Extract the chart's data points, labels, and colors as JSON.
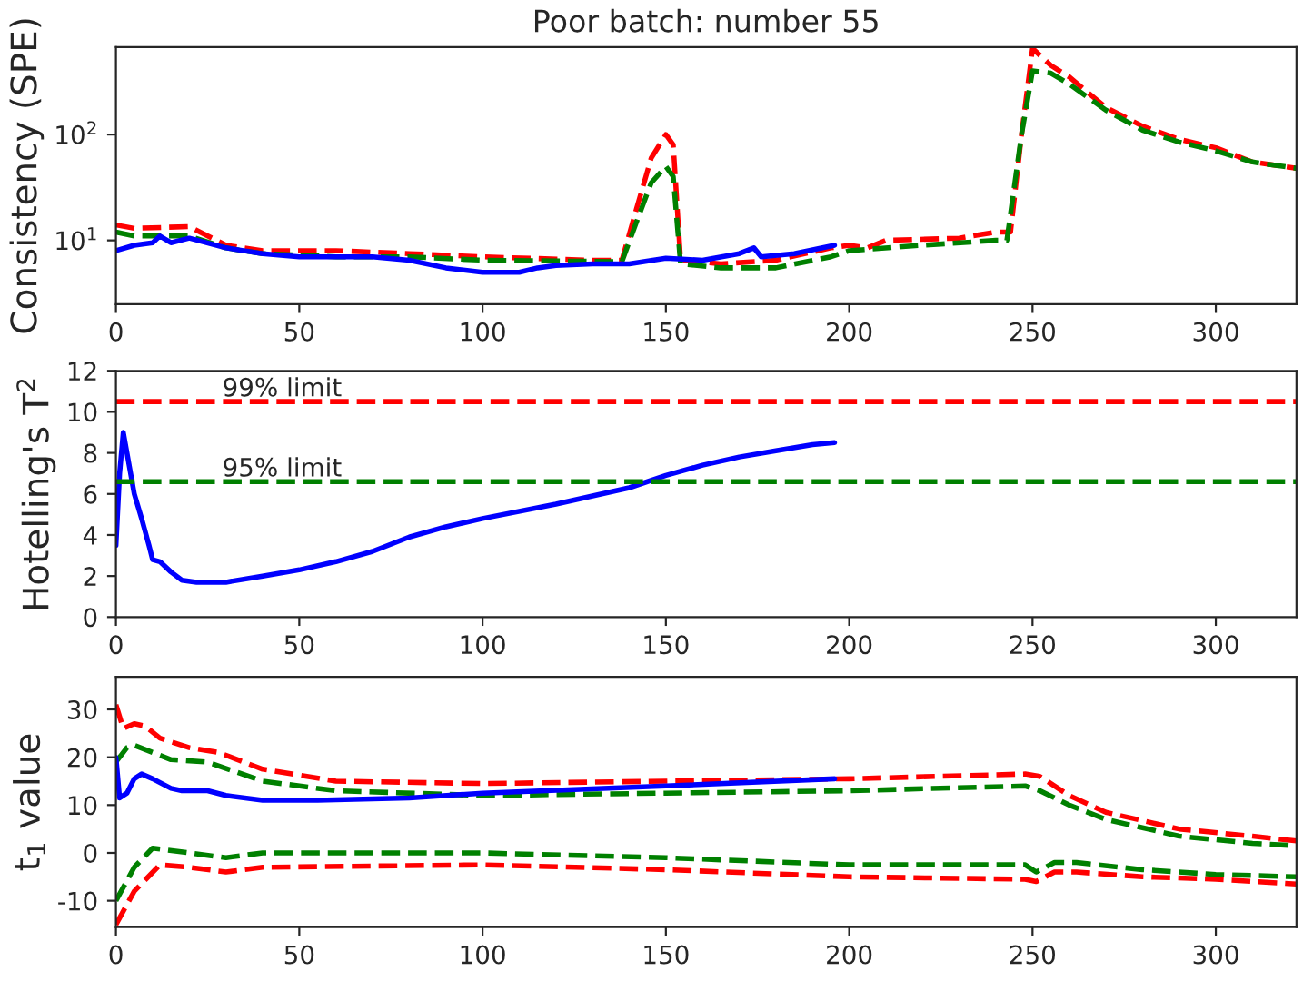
{
  "chart_data": [
    {
      "type": "line",
      "title": "Poor batch: number 55",
      "ylabel": "Consistency (SPE)",
      "log": "y",
      "xlim": [
        0,
        322
      ],
      "xticks": [
        0,
        50,
        100,
        150,
        200,
        250,
        300
      ],
      "ylim": [
        2.5,
        670
      ],
      "yticks": [
        {
          "value": 10,
          "label": "10$^{1}$"
        },
        {
          "value": 100,
          "label": "10$^{2}$"
        }
      ],
      "series": [
        {
          "color": "#ff0000",
          "line_style": "dashed",
          "x": [
            0,
            5,
            20,
            30,
            40,
            60,
            80,
            100,
            130,
            138,
            142,
            146,
            150,
            152,
            154,
            165,
            180,
            195,
            200,
            205,
            210,
            230,
            240,
            244,
            247,
            250,
            255,
            260,
            270,
            280,
            290,
            300,
            310,
            322
          ],
          "values": [
            14,
            13,
            13.5,
            9,
            8,
            8,
            7.5,
            7,
            6.5,
            6.5,
            20,
            60,
            100,
            80,
            6.5,
            6,
            6.5,
            8.5,
            9,
            8.5,
            10,
            10.5,
            12,
            12,
            100,
            650,
            450,
            350,
            180,
            120,
            90,
            75,
            55,
            48
          ]
        },
        {
          "color": "#008000",
          "line_style": "dashed",
          "x": [
            0,
            5,
            20,
            30,
            40,
            60,
            80,
            100,
            138,
            142,
            146,
            150,
            152,
            154,
            165,
            180,
            195,
            200,
            220,
            240,
            243,
            247,
            250,
            255,
            260,
            270,
            280,
            290,
            300,
            310,
            322
          ],
          "values": [
            12,
            11,
            11,
            8.5,
            7.5,
            7,
            7,
            6.5,
            6.3,
            15,
            35,
            50,
            40,
            6,
            5.5,
            5.5,
            7,
            8,
            9,
            10,
            10,
            100,
            400,
            380,
            300,
            170,
            110,
            85,
            70,
            55,
            48
          ]
        },
        {
          "color": "#0000ff",
          "line_style": "solid",
          "x": [
            0,
            5,
            10,
            12,
            15,
            20,
            30,
            40,
            50,
            70,
            80,
            90,
            100,
            110,
            115,
            120,
            130,
            140,
            150,
            160,
            170,
            174,
            176,
            185,
            196
          ],
          "values": [
            8,
            9,
            9.5,
            11,
            9.5,
            10.5,
            8.5,
            7.5,
            7,
            7,
            6.5,
            5.5,
            5,
            5,
            5.5,
            5.8,
            6,
            6,
            6.8,
            6.5,
            7.5,
            8.5,
            7,
            7.5,
            9
          ]
        }
      ]
    },
    {
      "type": "line",
      "ylabel": "Hotelling's T$^{2}$",
      "xlim": [
        0,
        322
      ],
      "xticks": [
        0,
        50,
        100,
        150,
        200,
        250,
        300
      ],
      "ylim": [
        0,
        12
      ],
      "yticks": [
        0,
        2,
        4,
        6,
        8,
        10,
        12
      ],
      "ref_lines": [
        {
          "axis": "y",
          "value": 10.5,
          "label": "99% limit",
          "color": "#ff0000",
          "line_style": "dashed"
        },
        {
          "axis": "y",
          "value": 6.6,
          "label": "95% limit",
          "color": "#008000",
          "line_style": "dashed"
        }
      ],
      "series": [
        {
          "color": "#0000ff",
          "line_style": "solid",
          "x": [
            0,
            1,
            2,
            3,
            5,
            7,
            9,
            10,
            12,
            15,
            18,
            22,
            30,
            40,
            50,
            60,
            70,
            80,
            90,
            100,
            120,
            140,
            150,
            160,
            170,
            180,
            190,
            196
          ],
          "values": [
            3.5,
            7,
            9,
            8,
            6,
            4.8,
            3.5,
            2.8,
            2.7,
            2.2,
            1.8,
            1.7,
            1.7,
            2,
            2.3,
            2.7,
            3.2,
            3.9,
            4.4,
            4.8,
            5.5,
            6.3,
            6.9,
            7.4,
            7.8,
            8.1,
            8.4,
            8.5
          ]
        }
      ]
    },
    {
      "type": "line",
      "ylabel": "t$_{1}$ value",
      "xlim": [
        0,
        322
      ],
      "xticks": [
        0,
        50,
        100,
        150,
        200,
        250,
        300
      ],
      "ylim": [
        -15.5,
        36.8
      ],
      "yticks": [
        -10,
        0,
        10,
        20,
        30
      ],
      "series": [
        {
          "color": "#ff0000",
          "line_style": "dashed",
          "x": [
            0,
            2,
            5,
            8,
            12,
            20,
            28,
            40,
            60,
            100,
            150,
            200,
            248,
            252,
            260,
            270,
            290,
            310,
            322
          ],
          "values": [
            31,
            26,
            27,
            26.5,
            24,
            22,
            21,
            17.5,
            15,
            14.5,
            15,
            15.5,
            16.5,
            16,
            12,
            8.5,
            5,
            3.5,
            2.5
          ]
        },
        {
          "color": "#008000",
          "line_style": "dashed",
          "x": [
            0,
            3,
            5,
            15,
            25,
            40,
            60,
            100,
            150,
            200,
            248,
            252,
            260,
            270,
            290,
            310,
            322
          ],
          "values": [
            19,
            22,
            22.5,
            19.5,
            19,
            15,
            13,
            12,
            12.5,
            13,
            14,
            13,
            10,
            7,
            3.5,
            2,
            1.5
          ]
        },
        {
          "color": "#008000",
          "line_style": "dashed",
          "x": [
            0,
            5,
            10,
            20,
            30,
            40,
            100,
            150,
            200,
            248,
            251,
            256,
            262,
            280,
            300,
            322
          ],
          "values": [
            -10,
            -3,
            1,
            0,
            -1,
            0,
            0,
            -1,
            -2.5,
            -2.5,
            -4,
            -2,
            -2,
            -3.5,
            -4.5,
            -5
          ]
        },
        {
          "color": "#ff0000",
          "line_style": "dashed",
          "x": [
            0,
            5,
            12,
            20,
            30,
            40,
            100,
            150,
            200,
            248,
            251,
            256,
            262,
            280,
            300,
            322
          ],
          "values": [
            -15,
            -8,
            -2.5,
            -3,
            -4,
            -3,
            -2.5,
            -3.5,
            -5,
            -5.5,
            -6,
            -4,
            -4,
            -5,
            -5.5,
            -6.5
          ]
        },
        {
          "color": "#0000ff",
          "line_style": "solid",
          "x": [
            0,
            1,
            3,
            5,
            7,
            10,
            15,
            18,
            25,
            30,
            40,
            55,
            80,
            100,
            150,
            196
          ],
          "values": [
            20,
            11.5,
            12.5,
            15.5,
            16.5,
            15.5,
            13.5,
            13,
            13,
            12,
            11,
            11,
            11.5,
            12.5,
            14,
            15.5
          ]
        }
      ]
    }
  ]
}
